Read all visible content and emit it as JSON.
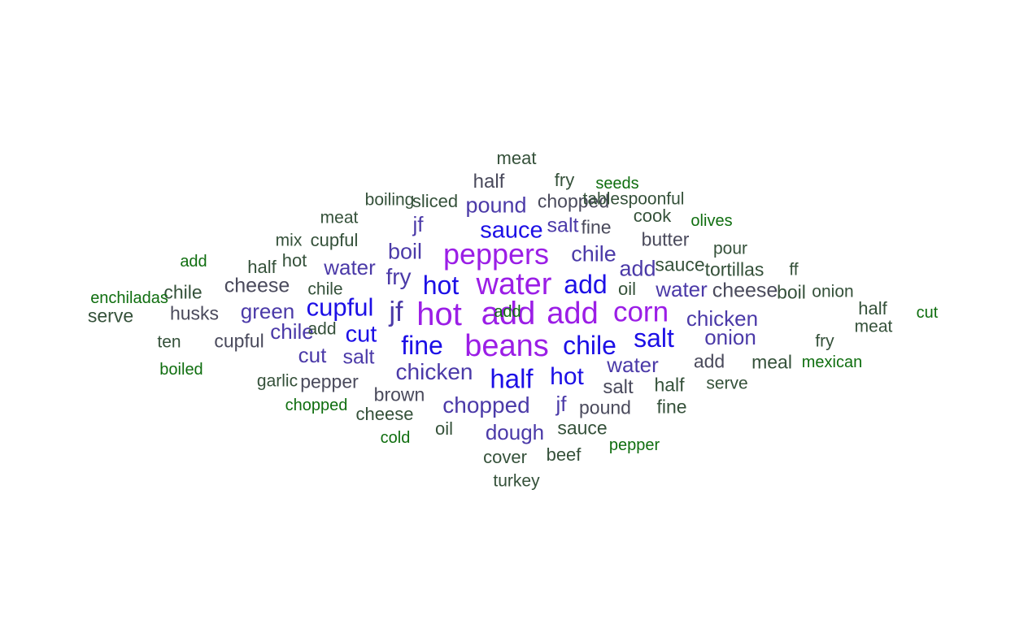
{
  "colors": {
    "purple": "#9b1ee6",
    "blue": "#1c0fe6",
    "indigo": "#4b3aa8",
    "slate": "#4a4a5c",
    "darkgreen": "#35513a",
    "green": "#0f6e0f"
  },
  "words": [
    {
      "text": "hot",
      "size": 40,
      "color": "#9b1ee6"
    },
    {
      "text": "add",
      "size": 40,
      "color": "#9b1ee6"
    },
    {
      "text": "water",
      "size": 38,
      "color": "#9b1ee6"
    },
    {
      "text": "add",
      "size": 38,
      "color": "#9b1ee6"
    },
    {
      "text": "beans",
      "size": 38,
      "color": "#9b1ee6"
    },
    {
      "text": "corn",
      "size": 35,
      "color": "#9b1ee6"
    },
    {
      "text": "peppers",
      "size": 36,
      "color": "#9b1ee6"
    },
    {
      "text": "jf",
      "size": 34,
      "color": "#4b3aa8"
    },
    {
      "text": "half",
      "size": 33,
      "color": "#1c0fe6"
    },
    {
      "text": "sauce",
      "size": 29,
      "color": "#1c0fe6"
    },
    {
      "text": "hot",
      "size": 32,
      "color": "#1c0fe6"
    },
    {
      "text": "add",
      "size": 32,
      "color": "#1c0fe6"
    },
    {
      "text": "cupful",
      "size": 31,
      "color": "#1c0fe6"
    },
    {
      "text": "fine",
      "size": 32,
      "color": "#1c0fe6"
    },
    {
      "text": "chile",
      "size": 32,
      "color": "#1c0fe6"
    },
    {
      "text": "salt",
      "size": 32,
      "color": "#1c0fe6"
    },
    {
      "text": "hot",
      "size": 30,
      "color": "#1c0fe6"
    },
    {
      "text": "cut",
      "size": 29,
      "color": "#1c0fe6"
    },
    {
      "text": "chopped",
      "size": 28,
      "color": "#4b3aa8"
    },
    {
      "text": "chicken",
      "size": 28,
      "color": "#4b3aa8"
    },
    {
      "text": "fry",
      "size": 28,
      "color": "#4b3aa8"
    },
    {
      "text": "pound",
      "size": 27,
      "color": "#4b3aa8"
    },
    {
      "text": "chile",
      "size": 27,
      "color": "#4b3aa8"
    },
    {
      "text": "boil",
      "size": 27,
      "color": "#4b3aa8"
    },
    {
      "text": "add",
      "size": 27,
      "color": "#4b3aa8"
    },
    {
      "text": "water",
      "size": 26,
      "color": "#4b3aa8"
    },
    {
      "text": "water",
      "size": 26,
      "color": "#4b3aa8"
    },
    {
      "text": "water",
      "size": 26,
      "color": "#4b3aa8"
    },
    {
      "text": "chicken",
      "size": 26,
      "color": "#4b3aa8"
    },
    {
      "text": "dough",
      "size": 26,
      "color": "#4b3aa8"
    },
    {
      "text": "onion",
      "size": 26,
      "color": "#4b3aa8"
    },
    {
      "text": "green",
      "size": 26,
      "color": "#4b3aa8"
    },
    {
      "text": "chile",
      "size": 26,
      "color": "#4b3aa8"
    },
    {
      "text": "cut",
      "size": 26,
      "color": "#4b3aa8"
    },
    {
      "text": "salt",
      "size": 25,
      "color": "#4b3aa8"
    },
    {
      "text": "salt",
      "size": 25,
      "color": "#4b3aa8"
    },
    {
      "text": "jf",
      "size": 26,
      "color": "#4b3aa8"
    },
    {
      "text": "jf",
      "size": 26,
      "color": "#4b3aa8"
    },
    {
      "text": "cheese",
      "size": 25,
      "color": "#4a4a5c"
    },
    {
      "text": "cheese",
      "size": 25,
      "color": "#4a4a5c"
    },
    {
      "text": "salt",
      "size": 24,
      "color": "#4a4a5c"
    },
    {
      "text": "half",
      "size": 24,
      "color": "#4a4a5c"
    },
    {
      "text": "chopped",
      "size": 23,
      "color": "#4a4a5c"
    },
    {
      "text": "fine",
      "size": 23,
      "color": "#4a4a5c"
    },
    {
      "text": "add",
      "size": 23,
      "color": "#4a4a5c"
    },
    {
      "text": "cupful",
      "size": 23,
      "color": "#4a4a5c"
    },
    {
      "text": "husks",
      "size": 23,
      "color": "#4a4a5c"
    },
    {
      "text": "pepper",
      "size": 23,
      "color": "#4a4a5c"
    },
    {
      "text": "pound",
      "size": 23,
      "color": "#4a4a5c"
    },
    {
      "text": "brown",
      "size": 23,
      "color": "#4a4a5c"
    },
    {
      "text": "butter",
      "size": 23,
      "color": "#4a4a5c"
    },
    {
      "text": "cheese",
      "size": 22,
      "color": "#35513a"
    },
    {
      "text": "tortillas",
      "size": 23,
      "color": "#35513a"
    },
    {
      "text": "boil",
      "size": 23,
      "color": "#35513a"
    },
    {
      "text": "meal",
      "size": 23,
      "color": "#35513a"
    },
    {
      "text": "serve",
      "size": 23,
      "color": "#35513a"
    },
    {
      "text": "sauce",
      "size": 23,
      "color": "#35513a"
    },
    {
      "text": "half",
      "size": 23,
      "color": "#35513a"
    },
    {
      "text": "chile",
      "size": 23,
      "color": "#35513a"
    },
    {
      "text": "fine",
      "size": 23,
      "color": "#35513a"
    },
    {
      "text": "sauce",
      "size": 23,
      "color": "#35513a"
    },
    {
      "text": "cover",
      "size": 22,
      "color": "#35513a"
    },
    {
      "text": "beef",
      "size": 22,
      "color": "#35513a"
    },
    {
      "text": "sliced",
      "size": 22,
      "color": "#35513a"
    },
    {
      "text": "cook",
      "size": 22,
      "color": "#35513a"
    },
    {
      "text": "cupful",
      "size": 22,
      "color": "#35513a"
    },
    {
      "text": "half",
      "size": 22,
      "color": "#35513a"
    },
    {
      "text": "half",
      "size": 22,
      "color": "#35513a"
    },
    {
      "text": "hot",
      "size": 22,
      "color": "#35513a"
    },
    {
      "text": "oil",
      "size": 22,
      "color": "#35513a"
    },
    {
      "text": "oil",
      "size": 22,
      "color": "#35513a"
    },
    {
      "text": "fry",
      "size": 22,
      "color": "#35513a"
    },
    {
      "text": "meat",
      "size": 22,
      "color": "#35513a"
    },
    {
      "text": "turkey",
      "size": 21,
      "color": "#35513a"
    },
    {
      "text": "tablespoonful",
      "size": 21,
      "color": "#35513a"
    },
    {
      "text": "meat",
      "size": 21,
      "color": "#35513a"
    },
    {
      "text": "boiling",
      "size": 21,
      "color": "#35513a"
    },
    {
      "text": "ten",
      "size": 21,
      "color": "#35513a"
    },
    {
      "text": "garlic",
      "size": 21,
      "color": "#35513a"
    },
    {
      "text": "mix",
      "size": 21,
      "color": "#35513a"
    },
    {
      "text": "serve",
      "size": 21,
      "color": "#35513a"
    },
    {
      "text": "onion",
      "size": 21,
      "color": "#35513a"
    },
    {
      "text": "fry",
      "size": 21,
      "color": "#35513a"
    },
    {
      "text": "meat",
      "size": 21,
      "color": "#35513a"
    },
    {
      "text": "pour",
      "size": 21,
      "color": "#35513a"
    },
    {
      "text": "chile",
      "size": 21,
      "color": "#35513a"
    },
    {
      "text": "add",
      "size": 21,
      "color": "#35513a"
    },
    {
      "text": "ff",
      "size": 21,
      "color": "#35513a"
    },
    {
      "text": "add",
      "size": 20,
      "color": "#0f6e0f"
    },
    {
      "text": "enchiladas",
      "size": 20,
      "color": "#0f6e0f"
    },
    {
      "text": "boiled",
      "size": 20,
      "color": "#0f6e0f"
    },
    {
      "text": "chopped",
      "size": 20,
      "color": "#0f6e0f"
    },
    {
      "text": "cold",
      "size": 20,
      "color": "#0f6e0f"
    },
    {
      "text": "pepper",
      "size": 20,
      "color": "#0f6e0f"
    },
    {
      "text": "mexican",
      "size": 20,
      "color": "#0f6e0f"
    },
    {
      "text": "olives",
      "size": 20,
      "color": "#0f6e0f"
    },
    {
      "text": "seeds",
      "size": 20,
      "color": "#0f6e0f"
    },
    {
      "text": "cut",
      "size": 20,
      "color": "#0f6e0f"
    },
    {
      "text": "add",
      "size": 20,
      "color": "#0f6e0f"
    }
  ]
}
